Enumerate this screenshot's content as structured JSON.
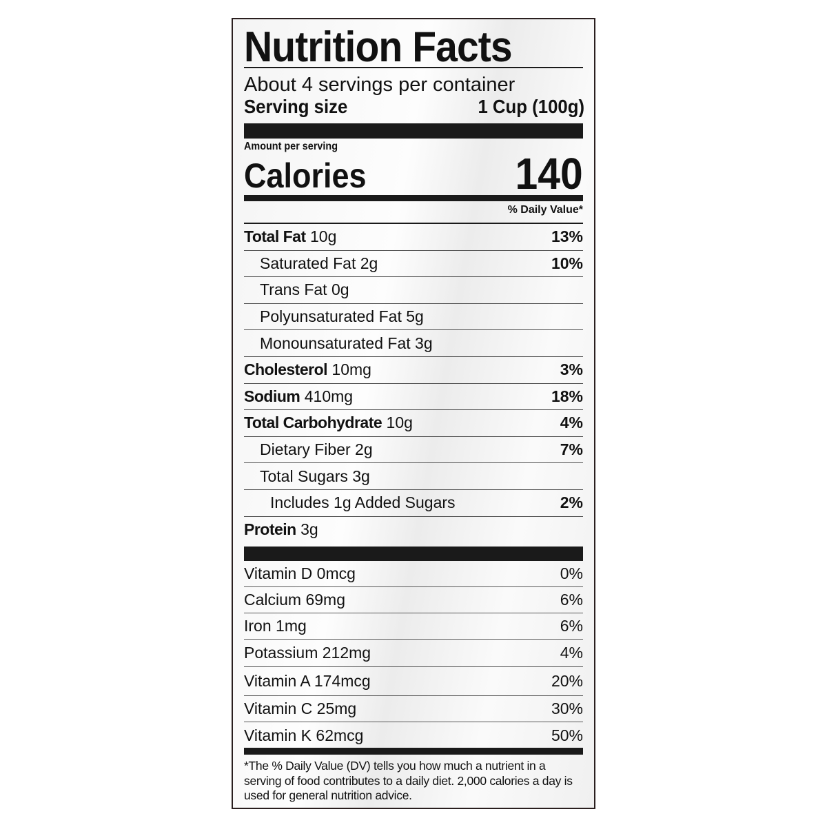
{
  "title": "Nutrition Facts",
  "servings_per_container": "About 4 servings per container",
  "serving_size_label": "Serving size",
  "serving_size_value": "1 Cup (100g)",
  "amount_per_serving": "Amount per serving",
  "calories_label": "Calories",
  "calories_value": "140",
  "daily_value_header": "% Daily Value*",
  "nutrients": [
    {
      "name": "Total Fat",
      "amount": "10g",
      "dv": "13%",
      "bold": true,
      "indent": 0
    },
    {
      "name": "Saturated Fat",
      "amount": "2g",
      "dv": "10%",
      "bold": false,
      "indent": 1
    },
    {
      "name": "Trans Fat",
      "amount": "0g",
      "dv": "",
      "bold": false,
      "indent": 1
    },
    {
      "name": "Polyunsaturated Fat",
      "amount": "5g",
      "dv": "",
      "bold": false,
      "indent": 1
    },
    {
      "name": "Monounsaturated Fat",
      "amount": "3g",
      "dv": "",
      "bold": false,
      "indent": 1
    },
    {
      "name": "Cholesterol",
      "amount": "10mg",
      "dv": "3%",
      "bold": true,
      "indent": 0
    },
    {
      "name": "Sodium",
      "amount": "410mg",
      "dv": "18%",
      "bold": true,
      "indent": 0
    },
    {
      "name": "Total Carbohydrate",
      "amount": "10g",
      "dv": "4%",
      "bold": true,
      "indent": 0
    },
    {
      "name": "Dietary Fiber",
      "amount": "2g",
      "dv": "7%",
      "bold": false,
      "indent": 1
    },
    {
      "name": "Total Sugars",
      "amount": "3g",
      "dv": "",
      "bold": false,
      "indent": 1
    },
    {
      "name": "Includes 1g Added Sugars",
      "amount": "",
      "dv": "2%",
      "bold": false,
      "indent": 2
    },
    {
      "name": "Protein",
      "amount": "3g",
      "dv": "",
      "bold": true,
      "indent": 0
    }
  ],
  "vitamins": [
    {
      "name": "Vitamin D",
      "amount": "0mcg",
      "dv": "0%"
    },
    {
      "name": "Calcium",
      "amount": "69mg",
      "dv": "6%"
    },
    {
      "name": "Iron",
      "amount": "1mg",
      "dv": "6%"
    },
    {
      "name": "Potassium",
      "amount": "212mg",
      "dv": "4%"
    },
    {
      "name": "Vitamin A",
      "amount": "174mcg",
      "dv": "20%"
    },
    {
      "name": "Vitamin C",
      "amount": "25mg",
      "dv": "30%"
    },
    {
      "name": "Vitamin K",
      "amount": "62mcg",
      "dv": "50%"
    }
  ],
  "footnote": "*The % Daily Value (DV) tells you how much a nutrient in a serving of food contributes to a daily diet. 2,000 calories a day is used for general nutrition advice."
}
